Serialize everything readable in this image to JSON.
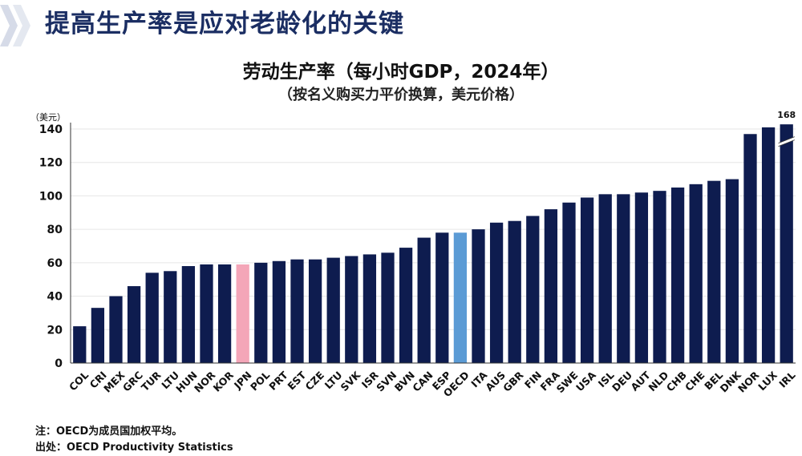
{
  "slide_title": "提高生产率是应对老龄化的关键",
  "footnote_note": "注：OECD为成员国加权平均。",
  "footnote_source": "出处：OECD Productivity Statistics",
  "colors": {
    "bar": "#0e1c4f",
    "oecd": "#5b9bd5",
    "japan": "#f4a6b8",
    "title": "#1b2e63"
  },
  "chart_data": {
    "type": "bar",
    "title": "劳动生产率（每小时GDP，2024年）",
    "subtitle": "（按名义购买力平价换算，美元价格）",
    "ylabel": "（美元）",
    "ylim": [
      0,
      140
    ],
    "yticks": [
      0,
      20,
      40,
      60,
      80,
      100,
      120,
      140
    ],
    "grid": true,
    "categories": [
      "COL",
      "CRI",
      "MEX",
      "GRC",
      "TUR",
      "LTU",
      "HUN",
      "NOR",
      "KOR",
      "JPN",
      "POL",
      "PRT",
      "EST",
      "CZE",
      "LTU",
      "SVK",
      "ISR",
      "SVN",
      "BVN",
      "CAN",
      "ESP",
      "OECD",
      "ITA",
      "AUS",
      "GBR",
      "FIN",
      "FRA",
      "SWE",
      "USA",
      "ISL",
      "DEU",
      "AUT",
      "NLD",
      "CHB",
      "CHE",
      "BEL",
      "DNK",
      "NOR",
      "LUX",
      "IRL"
    ],
    "values": [
      22,
      33,
      40,
      46,
      54,
      55,
      58,
      59,
      59,
      59,
      60,
      61,
      62,
      62,
      63,
      64,
      65,
      66,
      69,
      75,
      78,
      78,
      80,
      84,
      85,
      88,
      92,
      96,
      99,
      101,
      101,
      102,
      103,
      105,
      107,
      109,
      110,
      137,
      141,
      168
    ],
    "highlight": {
      "JPN": "japan",
      "OECD": "oecd"
    },
    "break": {
      "category": "IRL",
      "label": "168"
    }
  }
}
